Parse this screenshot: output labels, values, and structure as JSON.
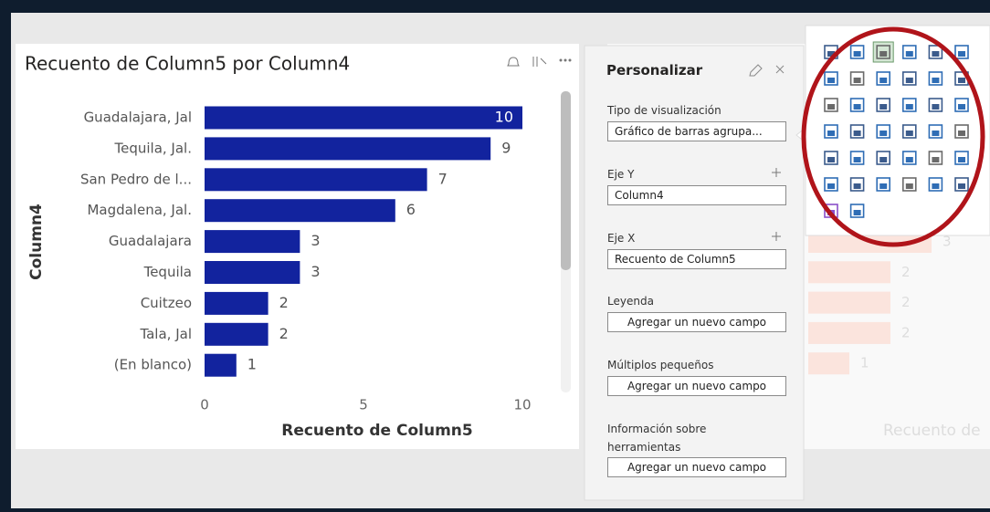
{
  "chart_data": {
    "type": "bar",
    "orientation": "horizontal",
    "title": "Recuento de Column5 por Column4",
    "x_label": "Recuento de Column5",
    "y_label": "Column4",
    "categories": [
      "Guadalajara, Jal",
      "Tequila, Jal.",
      "San Pedro de l...",
      "Magdalena, Jal.",
      "Guadalajara",
      "Tequila",
      "Cuitzeo",
      "Tala, Jal",
      "(En blanco)"
    ],
    "values": [
      10,
      9,
      7,
      6,
      3,
      3,
      2,
      2,
      1
    ],
    "color": "#12239e",
    "xlim": [
      0,
      10
    ],
    "xticks": [
      0,
      5,
      10
    ]
  },
  "panel": {
    "title": "Personalizar",
    "sections": [
      {
        "label": "Tipo de visualización",
        "field": "Gráfico de barras agrupa..."
      },
      {
        "label": "Eje Y",
        "field": "Column4"
      },
      {
        "label": "Eje X",
        "field": "Recuento de Column5"
      },
      {
        "label": "Leyenda",
        "field": "Agregar un nuevo campo"
      },
      {
        "label": "Múltiplos pequeños",
        "field": "Agregar un nuevo campo"
      },
      {
        "label": "Información sobre herramientas",
        "field": "Agregar un nuevo campo"
      }
    ]
  },
  "background_chart": {
    "x_label": "Recuento de",
    "values": [
      3,
      2,
      2,
      2,
      1
    ]
  }
}
